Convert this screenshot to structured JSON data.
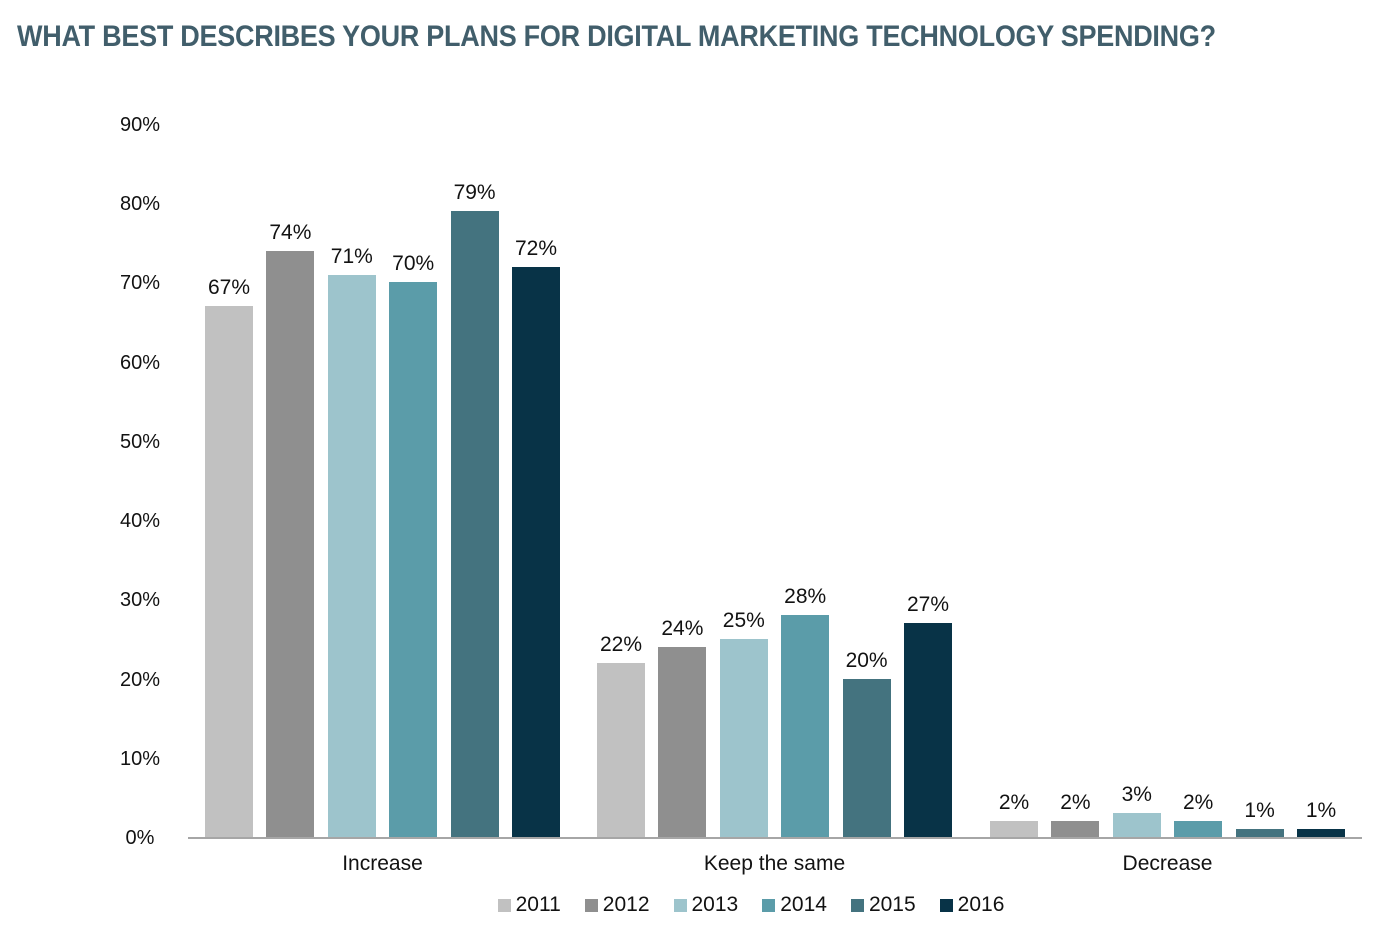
{
  "title": "WHAT BEST DESCRIBES YOUR PLANS FOR DIGITAL MARKETING TECHNOLOGY SPENDING?",
  "colors": {
    "title_text": "#415e6b",
    "axis_line": "#a6a6a6",
    "label_text": "#121212"
  },
  "chart_data": {
    "type": "bar",
    "title": "WHAT BEST DESCRIBES YOUR PLANS FOR DIGITAL MARKETING TECHNOLOGY SPENDING?",
    "categories": [
      "Increase",
      "Keep the same",
      "Decrease"
    ],
    "series": [
      {
        "name": "2011",
        "color": "#c1c1c1",
        "values": [
          67,
          22,
          2
        ],
        "value_labels": [
          "67%",
          "22%",
          "2%"
        ]
      },
      {
        "name": "2012",
        "color": "#8f8f8f",
        "values": [
          74,
          24,
          2
        ],
        "value_labels": [
          "74%",
          "24%",
          "2%"
        ]
      },
      {
        "name": "2013",
        "color": "#9dc4cc",
        "values": [
          71,
          25,
          3
        ],
        "value_labels": [
          "71%",
          "25%",
          "3%"
        ]
      },
      {
        "name": "2014",
        "color": "#5b9ca9",
        "values": [
          70,
          28,
          2
        ],
        "value_labels": [
          "70%",
          "28%",
          "2%"
        ]
      },
      {
        "name": "2015",
        "color": "#44737f",
        "values": [
          79,
          20,
          1
        ],
        "value_labels": [
          "79%",
          "20%",
          "1%"
        ]
      },
      {
        "name": "2016",
        "color": "#083347",
        "values": [
          72,
          27,
          1
        ],
        "value_labels": [
          "72%",
          "27%",
          "1%"
        ]
      }
    ],
    "value_suffix": "%",
    "ylabel": "",
    "xlabel": "",
    "ylim": [
      0,
      90
    ],
    "y_tick_step": 10,
    "y_tick_labels": [
      "0%",
      "10%",
      "20%",
      "30%",
      "40%",
      "50%",
      "60%",
      "70%",
      "80%",
      "90%"
    ],
    "grid": false,
    "data_labels": true,
    "legend_position": "bottom"
  }
}
